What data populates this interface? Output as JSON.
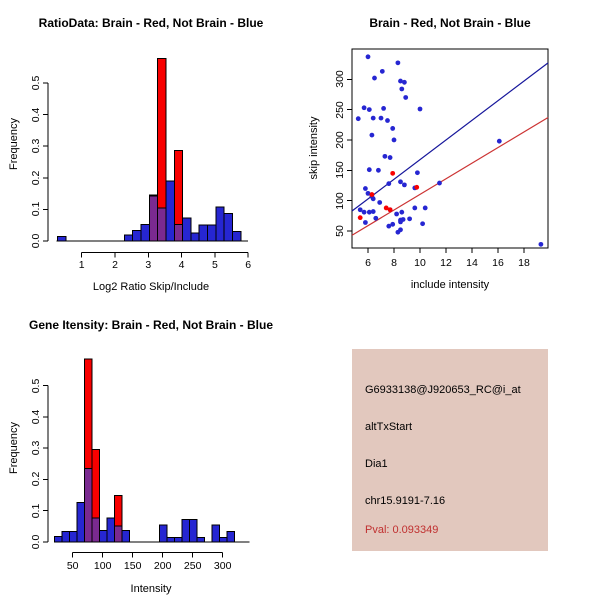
{
  "colors": {
    "blue": "#2626d2",
    "red": "#f80000",
    "purple": "#7a2a90",
    "line_blue": "#16169b",
    "line_red": "#cc3333",
    "panel_bg": "#e2c8be",
    "pval_red": "#c03030",
    "axis": "#000000"
  },
  "chart_data": [
    {
      "type": "bar",
      "title": "RatioData: Brain - Red, Not Brain - Blue",
      "xlabel": "Log2 Ratio Skip/Include",
      "ylabel": "Frequency",
      "xlim": [
        0,
        6.2
      ],
      "ylim": [
        0,
        0.6
      ],
      "x_ticks": [
        1,
        2,
        3,
        4,
        5,
        6
      ],
      "x_tick_labels": [
        "1",
        "2",
        "3",
        "4",
        "5",
        "6"
      ],
      "y_ticks": [
        0,
        0.1,
        0.2,
        0.3,
        0.4,
        0.5
      ],
      "y_tick_labels": [
        "0.0",
        "0.1",
        "0.2",
        "0.3",
        "0.4",
        "0.5"
      ],
      "grid": false,
      "baseline_span": [
        0.25,
        6.0
      ],
      "series": [
        {
          "name": "Not Brain",
          "color_key": "blue",
          "bars": [
            [
              0.28,
              0.53,
              0.015
            ],
            [
              2.28,
              2.53,
              0.019
            ],
            [
              2.53,
              2.78,
              0.034
            ],
            [
              2.78,
              3.03,
              0.053
            ],
            [
              3.03,
              3.28,
              0.145
            ],
            [
              3.28,
              3.53,
              0.105
            ],
            [
              3.53,
              3.78,
              0.19
            ],
            [
              3.78,
              4.03,
              0.053
            ],
            [
              4.03,
              4.28,
              0.072
            ],
            [
              4.28,
              4.53,
              0.025
            ],
            [
              4.53,
              4.78,
              0.05
            ],
            [
              4.78,
              5.03,
              0.05
            ],
            [
              5.03,
              5.28,
              0.107
            ],
            [
              5.28,
              5.53,
              0.087
            ],
            [
              5.53,
              5.78,
              0.03
            ]
          ]
        },
        {
          "name": "Brain",
          "color_key": "red",
          "bars": [
            [
              3.03,
              3.28,
              0.143
            ],
            [
              3.28,
              3.53,
              0.577
            ],
            [
              3.78,
              4.03,
              0.286
            ]
          ]
        }
      ]
    },
    {
      "type": "scatter",
      "title": "Brain - Red, Not Brain - Blue",
      "xlabel": "include intensity",
      "ylabel": "skip intensity",
      "xlim": [
        4.77,
        19.85
      ],
      "ylim": [
        22,
        350
      ],
      "x_ticks": [
        6,
        8,
        10,
        12,
        14,
        16,
        18
      ],
      "x_tick_labels": [
        "6",
        "8",
        "10",
        "12",
        "14",
        "16",
        "18"
      ],
      "y_ticks": [
        50,
        100,
        150,
        200,
        250,
        300
      ],
      "y_tick_labels": [
        "50",
        "100",
        "150",
        "200",
        "250",
        "300"
      ],
      "grid": false,
      "series": [
        {
          "name": "Not Brain",
          "color_key": "blue",
          "points": [
            [
              6.0,
              337
            ],
            [
              8.3,
              327
            ],
            [
              7.1,
              313
            ],
            [
              6.5,
              302
            ],
            [
              8.5,
              297
            ],
            [
              8.8,
              295
            ],
            [
              8.6,
              284
            ],
            [
              8.9,
              270
            ],
            [
              5.7,
              253
            ],
            [
              6.1,
              250
            ],
            [
              7.2,
              252
            ],
            [
              10.0,
              251
            ],
            [
              5.25,
              235
            ],
            [
              6.4,
              236
            ],
            [
              7.0,
              236
            ],
            [
              7.5,
              232
            ],
            [
              7.9,
              219
            ],
            [
              6.3,
              208
            ],
            [
              8.0,
              200
            ],
            [
              16.1,
              198
            ],
            [
              7.3,
              173
            ],
            [
              7.7,
              171
            ],
            [
              6.1,
              151
            ],
            [
              6.8,
              150
            ],
            [
              9.8,
              146
            ],
            [
              7.6,
              128
            ],
            [
              8.5,
              131
            ],
            [
              8.8,
              126
            ],
            [
              11.5,
              129
            ],
            [
              9.6,
              121
            ],
            [
              5.8,
              120
            ],
            [
              6.0,
              112
            ],
            [
              6.3,
              107
            ],
            [
              6.4,
              103
            ],
            [
              6.9,
              97
            ],
            [
              5.4,
              85
            ],
            [
              5.7,
              81
            ],
            [
              6.1,
              81
            ],
            [
              6.4,
              82
            ],
            [
              8.6,
              81
            ],
            [
              9.6,
              88
            ],
            [
              10.4,
              88
            ],
            [
              8.7,
              69
            ],
            [
              8.5,
              65
            ],
            [
              8.5,
              52
            ],
            [
              10.2,
              62
            ],
            [
              19.3,
              28
            ],
            [
              7.7,
              85
            ],
            [
              8.2,
              78
            ],
            [
              8.5,
              68
            ],
            [
              7.6,
              58
            ],
            [
              7.9,
              61
            ],
            [
              8.3,
              48
            ],
            [
              9.2,
              70
            ],
            [
              6.6,
              71
            ],
            [
              5.8,
              64
            ]
          ]
        },
        {
          "name": "Brain",
          "color_key": "red",
          "points": [
            [
              7.9,
              145
            ],
            [
              7.4,
              88
            ],
            [
              7.7,
              85
            ],
            [
              5.4,
              72
            ],
            [
              9.75,
              122
            ],
            [
              6.3,
              110
            ]
          ]
        }
      ],
      "fit_lines": [
        {
          "name": "not-brain-fit",
          "color_key": "line_blue",
          "x": [
            4.77,
            19.85
          ],
          "y": [
            83,
            327
          ]
        },
        {
          "name": "brain-fit",
          "color_key": "line_red",
          "x": [
            4.77,
            19.85
          ],
          "y": [
            43,
            237
          ]
        }
      ]
    },
    {
      "type": "bar",
      "title": "Gene Itensity: Brain - Red, Not Brain - Blue",
      "xlabel": "Intensity",
      "ylabel": "Frequency",
      "xlim": [
        10,
        353
      ],
      "ylim": [
        0,
        0.6
      ],
      "x_ticks": [
        50,
        100,
        150,
        200,
        250,
        300
      ],
      "x_tick_labels": [
        "50",
        "100",
        "150",
        "200",
        "250",
        "300"
      ],
      "y_ticks": [
        0,
        0.1,
        0.2,
        0.3,
        0.4,
        0.5
      ],
      "y_tick_labels": [
        "0.0",
        "0.1",
        "0.2",
        "0.3",
        "0.4",
        "0.5"
      ],
      "grid": false,
      "baseline_span": [
        20,
        345
      ],
      "series": [
        {
          "name": "Not Brain",
          "color_key": "blue",
          "bars": [
            [
              20,
              32.5,
              0.018
            ],
            [
              32.5,
              45,
              0.033
            ],
            [
              45,
              57.5,
              0.033
            ],
            [
              57.5,
              70,
              0.126
            ],
            [
              70,
              82.5,
              0.235
            ],
            [
              82.5,
              95,
              0.076
            ],
            [
              95,
              107.5,
              0.036
            ],
            [
              107.5,
              120,
              0.076
            ],
            [
              120,
              132.5,
              0.051
            ],
            [
              132.5,
              145,
              0.036
            ],
            [
              195,
              207.5,
              0.054
            ],
            [
              207.5,
              220,
              0.015
            ],
            [
              220,
              232.5,
              0.015
            ],
            [
              232.5,
              245,
              0.072
            ],
            [
              245,
              257.5,
              0.072
            ],
            [
              257.5,
              270,
              0.015
            ],
            [
              282.5,
              295,
              0.054
            ],
            [
              295,
              307.5,
              0.015
            ],
            [
              307.5,
              320,
              0.033
            ]
          ]
        },
        {
          "name": "Brain",
          "color_key": "red",
          "bars": [
            [
              70,
              82.5,
              0.585
            ],
            [
              82.5,
              95,
              0.295
            ],
            [
              120,
              132.5,
              0.148
            ]
          ]
        }
      ]
    },
    {
      "type": "text_panel",
      "lines": [
        "G6933138@J920653_RC@i_at",
        "altTxStart",
        "Dia1",
        "chr15.9191-7.16"
      ],
      "pval": "Pval: 0.093349"
    }
  ]
}
